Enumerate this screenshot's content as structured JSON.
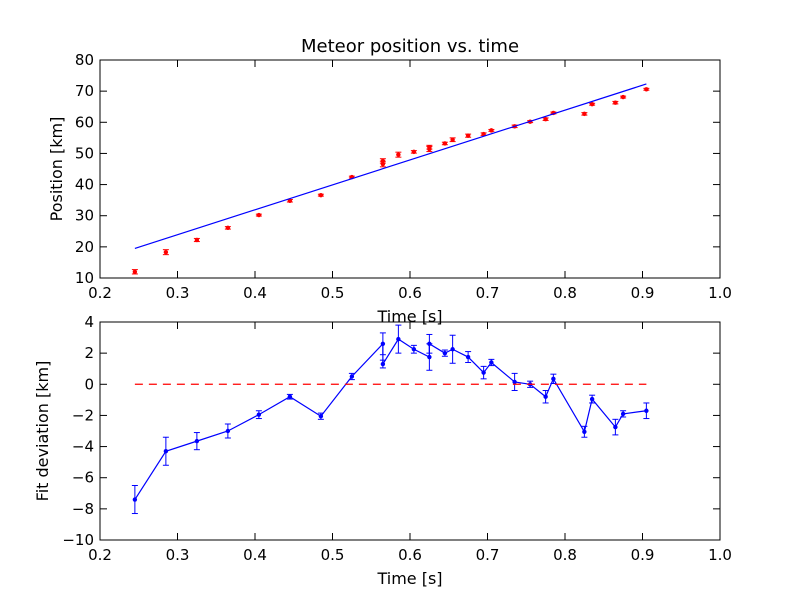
{
  "chart_data": [
    {
      "type": "scatter",
      "title": "Meteor position vs. time",
      "xlabel": "Time [s]",
      "ylabel": "Position [km]",
      "xlim": [
        0.2,
        1.0
      ],
      "ylim": [
        10,
        80
      ],
      "xticks": [
        "0.2",
        "0.3",
        "0.4",
        "0.5",
        "0.6",
        "0.7",
        "0.8",
        "0.9",
        "1.0"
      ],
      "yticks": [
        "10",
        "20",
        "30",
        "40",
        "50",
        "60",
        "70",
        "80"
      ],
      "grid": false,
      "colors": {
        "points": "#ff0000",
        "fit": "#0000ff"
      },
      "series": [
        {
          "kind": "points-with-error",
          "x": [
            0.245,
            0.285,
            0.325,
            0.365,
            0.405,
            0.445,
            0.485,
            0.525,
            0.565,
            0.565,
            0.585,
            0.605,
            0.625,
            0.625,
            0.645,
            0.655,
            0.675,
            0.695,
            0.705,
            0.735,
            0.755,
            0.775,
            0.785,
            0.825,
            0.835,
            0.865,
            0.875,
            0.905
          ],
          "y": [
            12.0,
            18.3,
            22.2,
            26.1,
            30.2,
            34.8,
            36.6,
            42.4,
            47.6,
            46.6,
            49.6,
            50.5,
            52.0,
            51.4,
            53.2,
            54.4,
            55.7,
            56.2,
            57.4,
            58.7,
            60.2,
            61.0,
            63.0,
            62.7,
            65.8,
            66.3,
            68.1,
            70.6
          ],
          "err": [
            0.7,
            0.8,
            0.5,
            0.4,
            0.3,
            0.4,
            0.3,
            0.3,
            0.7,
            0.9,
            0.8,
            0.4,
            0.6,
            0.8,
            0.4,
            0.6,
            0.5,
            0.4,
            0.3,
            0.4,
            0.3,
            0.4,
            0.3,
            0.4,
            0.3,
            0.4,
            0.3,
            0.3
          ]
        },
        {
          "kind": "fit-line",
          "x": [
            0.245,
            0.905
          ],
          "y": [
            19.5,
            72.3
          ]
        }
      ]
    },
    {
      "type": "line",
      "title": "",
      "xlabel": "Time [s]",
      "ylabel": "Fit deviation [km]",
      "xlim": [
        0.2,
        1.0
      ],
      "ylim": [
        -10,
        4
      ],
      "xticks": [
        "0.2",
        "0.3",
        "0.4",
        "0.5",
        "0.6",
        "0.7",
        "0.8",
        "0.9",
        "1.0"
      ],
      "yticks": [
        "−10",
        "−8",
        "−6",
        "−4",
        "−2",
        "0",
        "2",
        "4"
      ],
      "grid": false,
      "colors": {
        "deviation": "#0000ff",
        "zero_line": "#ff0000"
      },
      "series": [
        {
          "kind": "line-with-error",
          "x": [
            0.245,
            0.285,
            0.325,
            0.365,
            0.405,
            0.445,
            0.485,
            0.525,
            0.565,
            0.565,
            0.585,
            0.605,
            0.625,
            0.625,
            0.645,
            0.655,
            0.675,
            0.695,
            0.705,
            0.735,
            0.755,
            0.775,
            0.785,
            0.825,
            0.835,
            0.865,
            0.875,
            0.905
          ],
          "y": [
            -7.4,
            -4.3,
            -3.65,
            -3.0,
            -1.95,
            -0.8,
            -2.05,
            0.5,
            2.6,
            1.3,
            2.9,
            2.25,
            1.75,
            2.6,
            2.0,
            2.25,
            1.75,
            0.75,
            1.4,
            0.15,
            0.0,
            -0.8,
            0.35,
            -3.05,
            -0.95,
            -2.75,
            -1.9,
            -1.7
          ]
        },
        {
          "kind": "zero-line",
          "x": [
            0.245,
            0.905
          ],
          "y": [
            0,
            0
          ]
        }
      ]
    }
  ]
}
